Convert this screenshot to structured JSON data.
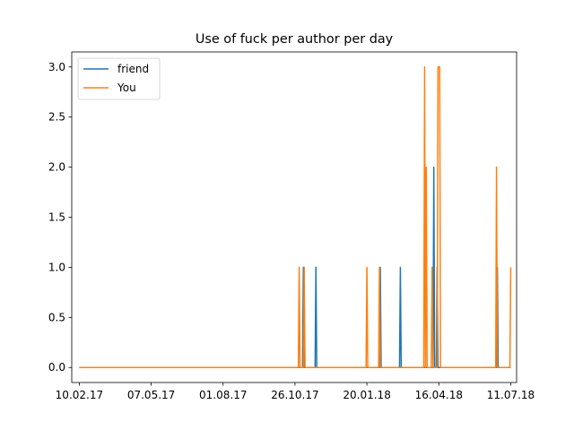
{
  "chart_data": {
    "type": "line",
    "title": "Use of fuck per author per day",
    "xlabel": "",
    "ylabel": "",
    "xlim": [
      "2017-02-01",
      "2018-07-18"
    ],
    "ylim": [
      -0.15,
      3.15
    ],
    "x_ticks": [
      {
        "date": "2017-02-10",
        "label": "10.02.17"
      },
      {
        "date": "2017-05-07",
        "label": "07.05.17"
      },
      {
        "date": "2017-08-01",
        "label": "01.08.17"
      },
      {
        "date": "2017-10-26",
        "label": "26.10.17"
      },
      {
        "date": "2018-01-20",
        "label": "20.01.18"
      },
      {
        "date": "2018-04-16",
        "label": "16.04.18"
      },
      {
        "date": "2018-07-11",
        "label": "11.07.18"
      }
    ],
    "y_ticks": [
      0.0,
      0.5,
      1.0,
      1.5,
      2.0,
      2.5,
      3.0
    ],
    "y_tick_labels": [
      "0.0",
      "0.5",
      "1.0",
      "1.5",
      "2.0",
      "2.5",
      "3.0"
    ],
    "grid": false,
    "legend_position": "top-left",
    "series": [
      {
        "name": "friend",
        "color": "#1f77b4",
        "start": "2017-02-10",
        "end": "2018-07-11",
        "default": 0,
        "spikes": [
          {
            "date": "2017-11-05",
            "value": 1
          },
          {
            "date": "2017-11-20",
            "value": 1
          },
          {
            "date": "2018-02-05",
            "value": 1
          },
          {
            "date": "2018-03-01",
            "value": 1
          },
          {
            "date": "2018-04-10",
            "value": 2
          },
          {
            "date": "2018-04-14",
            "value": 1
          },
          {
            "date": "2018-06-25",
            "value": 1
          }
        ]
      },
      {
        "name": "You",
        "color": "#ff7f0e",
        "start": "2017-02-10",
        "end": "2018-07-11",
        "default": 0,
        "spikes": [
          {
            "date": "2017-10-31",
            "value": 1
          },
          {
            "date": "2017-11-06",
            "value": 1
          },
          {
            "date": "2018-01-20",
            "value": 1
          },
          {
            "date": "2018-02-04",
            "value": 1
          },
          {
            "date": "2018-03-30",
            "value": 3
          },
          {
            "date": "2018-04-01",
            "value": 2
          },
          {
            "date": "2018-04-08",
            "value": 1
          },
          {
            "date": "2018-04-15",
            "value": 3
          },
          {
            "date": "2018-04-16",
            "value": 3
          },
          {
            "date": "2018-04-17",
            "value": 3
          },
          {
            "date": "2018-06-24",
            "value": 2
          },
          {
            "date": "2018-07-11",
            "value": 1
          }
        ]
      }
    ]
  }
}
